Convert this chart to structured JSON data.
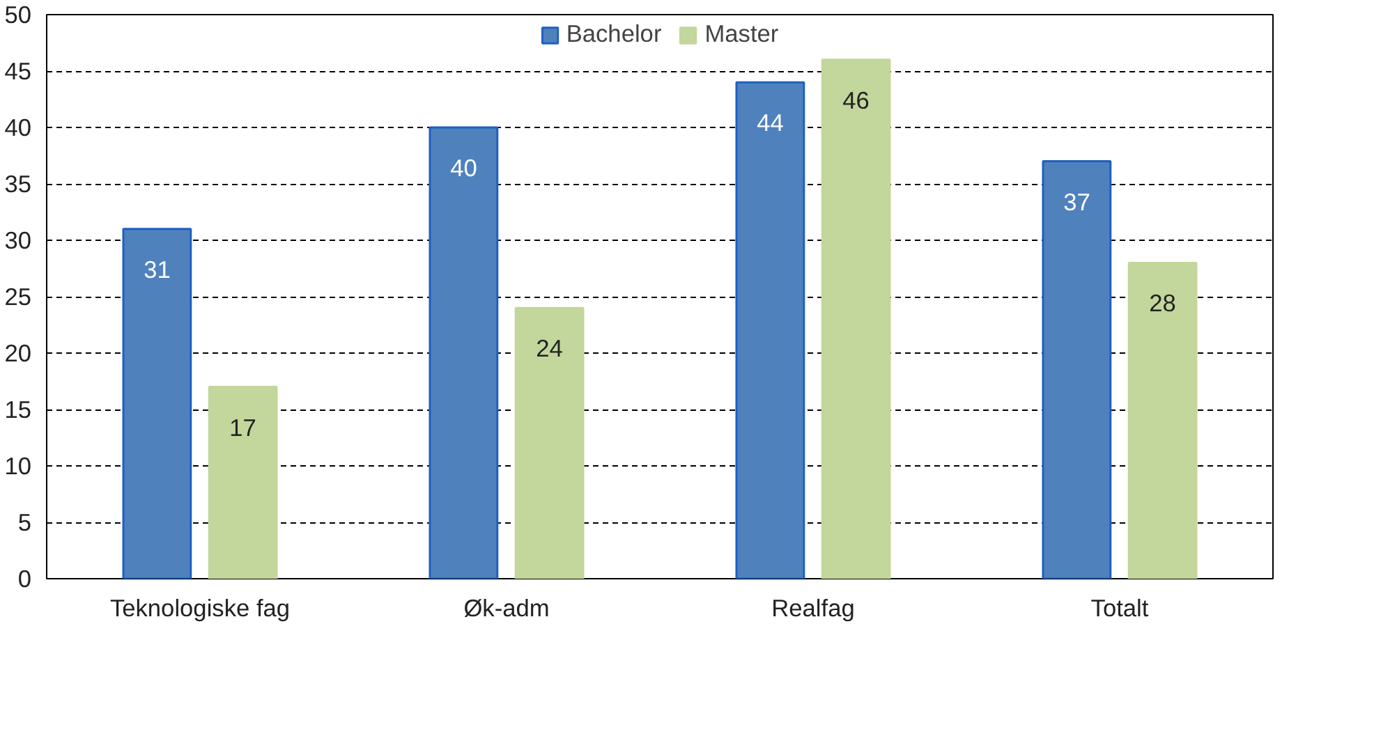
{
  "chart_data": {
    "type": "bar",
    "categories": [
      "Teknologiske fag",
      "Øk-adm",
      "Realfag",
      "Totalt"
    ],
    "series": [
      {
        "name": "Bachelor",
        "color": "#4f81bd",
        "values": [
          31,
          40,
          44,
          37
        ]
      },
      {
        "name": "Master",
        "color": "#c3d69b",
        "values": [
          17,
          24,
          46,
          28
        ]
      }
    ],
    "ylim": [
      0,
      50
    ],
    "yticks": [
      0,
      5,
      10,
      15,
      20,
      25,
      30,
      35,
      40,
      45,
      50
    ],
    "grid": "y",
    "legend": "top",
    "data_labels": true
  }
}
